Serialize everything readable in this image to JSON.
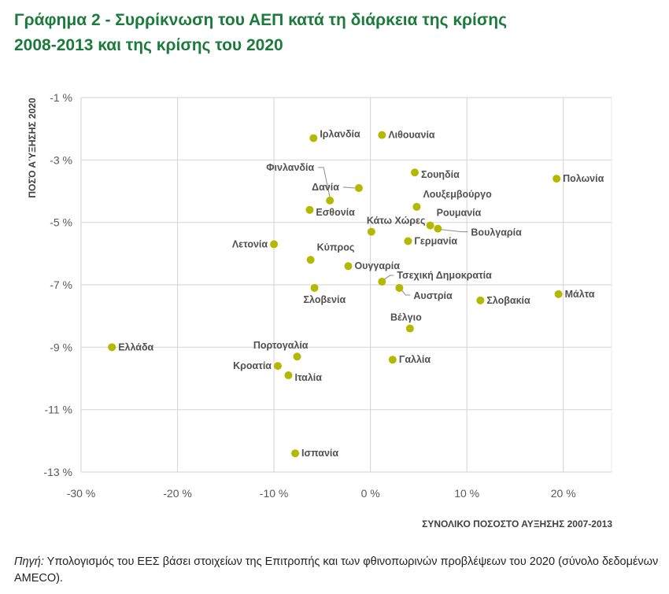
{
  "title": {
    "line1": "Γράφημα 2 - Συρρίκνωση του ΑΕΠ κατά τη διάρκεια της κρίσης",
    "line2": "2008-2013 και της κρίσης του 2020"
  },
  "source": {
    "label": "Πηγή:",
    "text": " Υπολογισμός του ΕΕΣ βάσει στοιχείων της Επιτροπής και των φθινοπωρινών προβλέψεων του 2020 (σύνολο δεδομένων AMECO)."
  },
  "colors": {
    "title": "#1b7a3c",
    "point": "#b5b800",
    "label": "#505050",
    "grid": "#d9d9d9"
  },
  "chart_data": {
    "type": "scatter",
    "title": "Γράφημα 2 - Συρρίκνωση του ΑΕΠ κατά τη διάρκεια της κρίσης 2008-2013 και της κρίσης του 2020",
    "xlabel": "ΣΥΝΟΛΙΚΟ ΠΟΣΟΣΤΟ ΑΥΞΗΣΗΣ 2007-2013",
    "ylabel": "ΠΟΣΌ ΑΎΞΗΣΗΣ 2020",
    "xlim": [
      -30,
      25
    ],
    "ylim": [
      -13,
      -1
    ],
    "x_ticks": [
      -30,
      -20,
      -10,
      0,
      10,
      20
    ],
    "x_tick_labels": [
      "-30 %",
      "-20 %",
      "-10 %",
      "0 %",
      "10 %",
      "20 %"
    ],
    "y_ticks": [
      -1,
      -3,
      -5,
      -7,
      -9,
      -11,
      -13
    ],
    "y_tick_labels": [
      "-1 %",
      "-3 %",
      "-5 %",
      "-7 %",
      "-9 %",
      "-11 %",
      "-13 %"
    ],
    "grid": true,
    "legend": "none",
    "points": [
      {
        "label": "Ελλάδα",
        "x": -26.8,
        "y": -9.0,
        "pos": "right"
      },
      {
        "label": "Ιρλανδία",
        "x": -5.9,
        "y": -2.3,
        "pos": "right-up"
      },
      {
        "label": "Λιθουανία",
        "x": 1.2,
        "y": -2.2,
        "pos": "right"
      },
      {
        "label": "Φινλανδία",
        "x": -4.2,
        "y": -4.3,
        "pos": "leader-finland"
      },
      {
        "label": "Δανία",
        "x": -1.2,
        "y": -3.9,
        "pos": "leader-denmark"
      },
      {
        "label": "Σουηδία",
        "x": 4.6,
        "y": -3.4,
        "pos": "right-down"
      },
      {
        "label": "Πολωνία",
        "x": 19.3,
        "y": -3.6,
        "pos": "right"
      },
      {
        "label": "Λουξεμβούργο",
        "x": 4.8,
        "y": -4.5,
        "pos": "above-right"
      },
      {
        "label": "Εσθονία",
        "x": -6.3,
        "y": -4.6,
        "pos": "right-down"
      },
      {
        "label": "Κάτω Χώρες",
        "x": 0.1,
        "y": -5.3,
        "pos": "above-right-wide"
      },
      {
        "label": "Ρουμανία",
        "x": 6.2,
        "y": -5.1,
        "pos": "above-right"
      },
      {
        "label": "Βουλγαρία",
        "x": 7.0,
        "y": -5.2,
        "pos": "leader-bulgaria"
      },
      {
        "label": "Γερμανία",
        "x": 3.9,
        "y": -5.6,
        "pos": "right"
      },
      {
        "label": "Λετονία",
        "x": -10.0,
        "y": -5.7,
        "pos": "left"
      },
      {
        "label": "Κύπρος",
        "x": -6.2,
        "y": -6.2,
        "pos": "above-right"
      },
      {
        "label": "Ουγγαρία",
        "x": -2.3,
        "y": -6.4,
        "pos": "right"
      },
      {
        "label": "Τσεχική Δημοκρατία",
        "x": 1.2,
        "y": -6.9,
        "pos": "leader-czech"
      },
      {
        "label": "Αυστρία",
        "x": 3.0,
        "y": -7.1,
        "pos": "leader-austria"
      },
      {
        "label": "Σλοβενία",
        "x": -5.8,
        "y": -7.1,
        "pos": "below"
      },
      {
        "label": "Σλοβακία",
        "x": 11.4,
        "y": -7.5,
        "pos": "right"
      },
      {
        "label": "Μάλτα",
        "x": 19.5,
        "y": -7.3,
        "pos": "right"
      },
      {
        "label": "Βέλγιο",
        "x": 4.1,
        "y": -8.4,
        "pos": "above"
      },
      {
        "label": "Γαλλία",
        "x": 2.3,
        "y": -9.4,
        "pos": "right"
      },
      {
        "label": "Πορτογαλία",
        "x": -7.6,
        "y": -9.3,
        "pos": "above-left"
      },
      {
        "label": "Κροατία",
        "x": -9.6,
        "y": -9.6,
        "pos": "left"
      },
      {
        "label": "Ιταλία",
        "x": -8.5,
        "y": -9.9,
        "pos": "right-down"
      },
      {
        "label": "Ισπανία",
        "x": -7.8,
        "y": -12.4,
        "pos": "right"
      }
    ]
  }
}
